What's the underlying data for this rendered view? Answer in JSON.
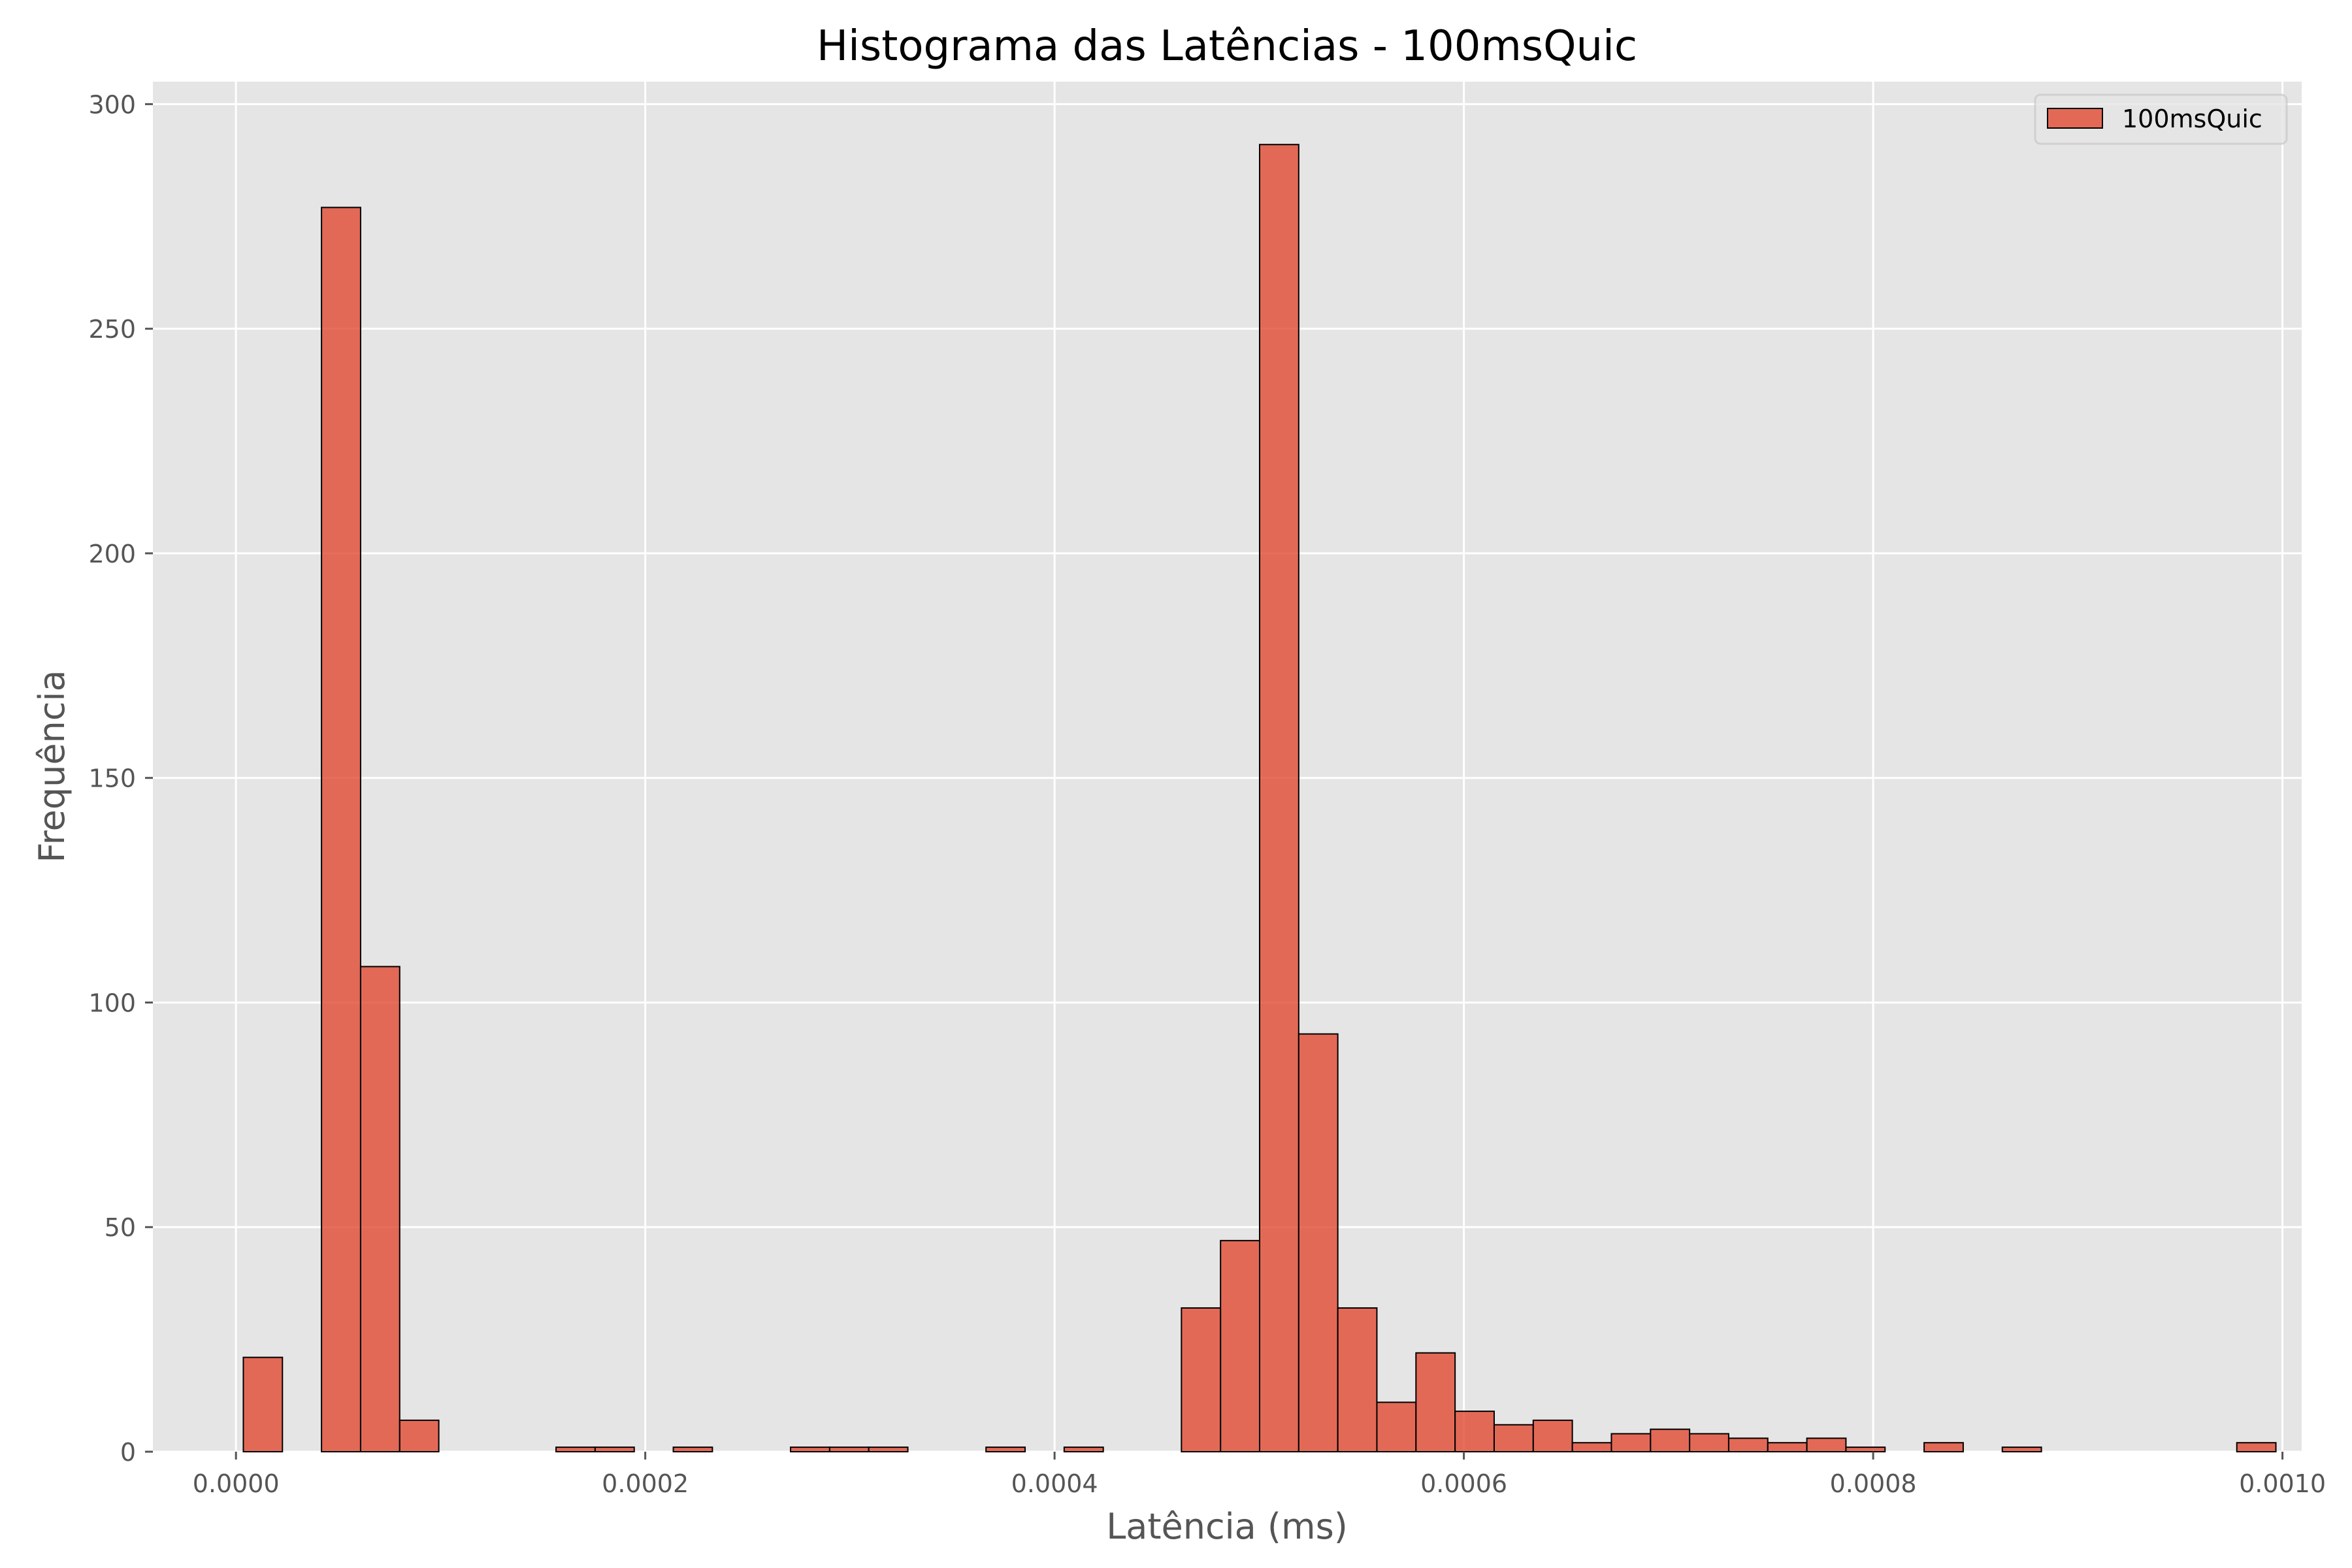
{
  "chart_data": {
    "type": "bar",
    "subtype": "histogram",
    "title": "Histograma das Latências - 100msQuic",
    "xlabel": "Latência (ms)",
    "ylabel": "Frequência",
    "xlim": [
      -4.06e-05,
      0.0010094
    ],
    "ylim": [
      0,
      305
    ],
    "x_ticks": [
      0.0,
      0.0002,
      0.0004,
      0.0006,
      0.0008,
      0.001
    ],
    "x_tick_labels": [
      "0.0000",
      "0.0002",
      "0.0004",
      "0.0006",
      "0.0008",
      "0.0010"
    ],
    "y_ticks": [
      0,
      50,
      100,
      150,
      200,
      250,
      300
    ],
    "y_tick_labels": [
      "0",
      "50",
      "100",
      "150",
      "200",
      "250",
      "300"
    ],
    "grid": true,
    "legend_position": "top-right",
    "bin_start": 3.6e-06,
    "bin_width": 1.91e-05,
    "series": [
      {
        "name": "100msQuic",
        "color": "#E24A33",
        "values": [
          21,
          0,
          277,
          108,
          7,
          0,
          0,
          0,
          1,
          1,
          0,
          1,
          0,
          0,
          1,
          1,
          1,
          0,
          0,
          1,
          0,
          1,
          0,
          0,
          32,
          47,
          291,
          93,
          32,
          11,
          22,
          9,
          6,
          7,
          2,
          4,
          5,
          4,
          3,
          2,
          3,
          1,
          0,
          2,
          0,
          1,
          0,
          0,
          0,
          0,
          0,
          2
        ]
      }
    ],
    "colors": {
      "plot_background": "#E5E5E5",
      "grid": "#FFFFFF",
      "bar_fill": "#E24A33",
      "bar_edge": "#000000",
      "text": "#555555"
    }
  }
}
